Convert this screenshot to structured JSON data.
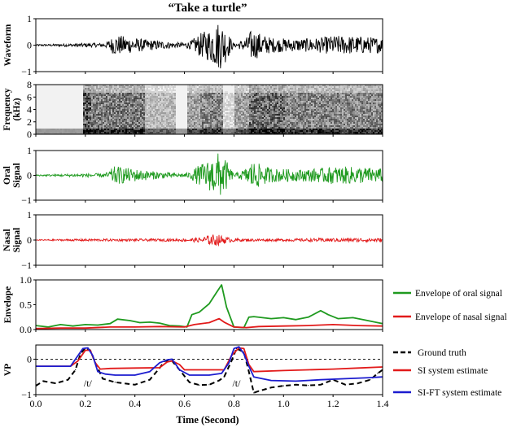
{
  "title": "“Take a turtle”",
  "xlabel": "Time (Second)",
  "colors": {
    "waveform": "#000000",
    "oral": "#1f9a1f",
    "nasal": "#e21a1a",
    "ground_truth": "#000000",
    "si_estimate": "#e21a1a",
    "si_ft_estimate": "#1c1ccf"
  },
  "annotations": [
    "/t/",
    "/t/"
  ],
  "chart_data": [
    {
      "type": "line",
      "panel": "waveform",
      "ylabel": "Waveform",
      "xlim": [
        0,
        1.4
      ],
      "ylim": [
        -1,
        1
      ],
      "yticks": [
        "1",
        "0",
        "−1"
      ],
      "envelope": {
        "x": [
          0.0,
          0.1,
          0.2,
          0.28,
          0.32,
          0.38,
          0.45,
          0.5,
          0.55,
          0.58,
          0.62,
          0.66,
          0.7,
          0.74,
          0.76,
          0.8,
          0.85,
          0.87,
          0.95,
          1.05,
          1.15,
          1.2,
          1.3,
          1.4
        ],
        "amp": [
          0.03,
          0.05,
          0.08,
          0.08,
          0.42,
          0.32,
          0.22,
          0.18,
          0.12,
          0.1,
          0.14,
          0.45,
          0.65,
          1.0,
          0.8,
          0.05,
          0.3,
          0.62,
          0.3,
          0.25,
          0.3,
          0.38,
          0.36,
          0.3
        ]
      }
    },
    {
      "type": "heatmap",
      "panel": "spectrogram",
      "ylabel": "Frequency (kHz)",
      "xlim": [
        0,
        1.4
      ],
      "ylim": [
        0,
        8
      ],
      "yticks": [
        "8",
        "6",
        "4",
        "2",
        "0"
      ]
    },
    {
      "type": "line",
      "panel": "oral",
      "ylabel": "Oral Signal",
      "xlim": [
        0,
        1.4
      ],
      "ylim": [
        -1,
        1
      ],
      "yticks": [
        "1",
        "0",
        "−1"
      ],
      "envelope": {
        "x": [
          0.0,
          0.1,
          0.2,
          0.28,
          0.32,
          0.38,
          0.45,
          0.5,
          0.55,
          0.58,
          0.62,
          0.66,
          0.7,
          0.74,
          0.76,
          0.8,
          0.85,
          0.87,
          0.95,
          1.05,
          1.15,
          1.2,
          1.3,
          1.4
        ],
        "amp": [
          0.03,
          0.05,
          0.08,
          0.08,
          0.4,
          0.3,
          0.2,
          0.15,
          0.1,
          0.08,
          0.12,
          0.45,
          0.65,
          1.0,
          0.8,
          0.05,
          0.3,
          0.62,
          0.3,
          0.25,
          0.3,
          0.38,
          0.36,
          0.3
        ]
      }
    },
    {
      "type": "line",
      "panel": "nasal",
      "ylabel": "Nasal Signal",
      "xlim": [
        0,
        1.4
      ],
      "ylim": [
        -1,
        1
      ],
      "yticks": [
        "1",
        "0",
        "−1"
      ],
      "envelope": {
        "x": [
          0.0,
          0.2,
          0.4,
          0.6,
          0.66,
          0.72,
          0.74,
          0.78,
          0.82,
          1.0,
          1.2,
          1.4
        ],
        "amp": [
          0.02,
          0.05,
          0.05,
          0.06,
          0.1,
          0.25,
          0.22,
          0.1,
          0.06,
          0.05,
          0.08,
          0.08
        ]
      }
    },
    {
      "type": "line",
      "panel": "envelope",
      "ylabel": "Envelope",
      "xlim": [
        0,
        1.4
      ],
      "ylim": [
        0,
        1.0
      ],
      "yticks": [
        "1.0",
        "0.5",
        "0.0"
      ],
      "series": [
        {
          "name": "Envelope of oral signal",
          "x": [
            0.0,
            0.05,
            0.1,
            0.15,
            0.2,
            0.25,
            0.3,
            0.33,
            0.38,
            0.42,
            0.46,
            0.5,
            0.54,
            0.58,
            0.61,
            0.63,
            0.66,
            0.7,
            0.73,
            0.75,
            0.77,
            0.8,
            0.84,
            0.86,
            0.88,
            0.95,
            1.0,
            1.05,
            1.1,
            1.15,
            1.18,
            1.22,
            1.28,
            1.33,
            1.38,
            1.4
          ],
          "values": [
            0.08,
            0.05,
            0.1,
            0.07,
            0.1,
            0.09,
            0.12,
            0.21,
            0.18,
            0.14,
            0.15,
            0.13,
            0.08,
            0.07,
            0.05,
            0.3,
            0.35,
            0.52,
            0.75,
            0.9,
            0.45,
            0.05,
            0.04,
            0.25,
            0.26,
            0.22,
            0.24,
            0.2,
            0.25,
            0.38,
            0.3,
            0.22,
            0.24,
            0.19,
            0.14,
            0.12
          ]
        },
        {
          "name": "Envelope of nasal signal",
          "x": [
            0.0,
            0.1,
            0.2,
            0.3,
            0.4,
            0.5,
            0.6,
            0.64,
            0.7,
            0.74,
            0.76,
            0.8,
            0.85,
            0.9,
            1.0,
            1.1,
            1.2,
            1.3,
            1.4
          ],
          "values": [
            0.02,
            0.03,
            0.03,
            0.05,
            0.05,
            0.06,
            0.05,
            0.1,
            0.14,
            0.22,
            0.15,
            0.05,
            0.04,
            0.06,
            0.07,
            0.08,
            0.1,
            0.08,
            0.07
          ]
        }
      ]
    },
    {
      "type": "line",
      "panel": "vp",
      "ylabel": "VP",
      "xlim": [
        0,
        1.4
      ],
      "ylim": [
        -1.0,
        0.4
      ],
      "yticks": [
        "0",
        "−1"
      ],
      "xticks": [
        "0.0",
        "0.2",
        "0.4",
        "0.6",
        "0.8",
        "1.0",
        "1.2",
        "1.4"
      ],
      "reference_line": 0,
      "series": [
        {
          "name": "Ground truth",
          "style": "dashed",
          "x": [
            0.0,
            0.03,
            0.08,
            0.13,
            0.16,
            0.18,
            0.2,
            0.22,
            0.24,
            0.27,
            0.32,
            0.4,
            0.46,
            0.5,
            0.52,
            0.55,
            0.58,
            0.62,
            0.66,
            0.7,
            0.74,
            0.76,
            0.79,
            0.81,
            0.84,
            0.86,
            0.88,
            0.9,
            0.95,
            1.0,
            1.05,
            1.1,
            1.15,
            1.2,
            1.25,
            1.3,
            1.35,
            1.38,
            1.4
          ],
          "values": [
            -0.75,
            -0.62,
            -0.68,
            -0.58,
            -0.3,
            0.15,
            0.32,
            0.25,
            -0.1,
            -0.55,
            -0.65,
            -0.72,
            -0.58,
            -0.25,
            -0.05,
            -0.05,
            -0.3,
            -0.65,
            -0.73,
            -0.72,
            -0.6,
            -0.5,
            -0.05,
            0.3,
            0.2,
            -0.35,
            -0.95,
            -0.9,
            -0.8,
            -0.75,
            -0.72,
            -0.74,
            -0.72,
            -0.58,
            -0.72,
            -0.68,
            -0.58,
            -0.4,
            -0.3
          ]
        },
        {
          "name": "SI system  estimate",
          "x": [
            0.0,
            0.05,
            0.1,
            0.14,
            0.17,
            0.2,
            0.22,
            0.24,
            0.26,
            0.3,
            0.4,
            0.5,
            0.53,
            0.55,
            0.58,
            0.6,
            0.7,
            0.76,
            0.79,
            0.82,
            0.84,
            0.86,
            0.88,
            1.0,
            1.1,
            1.2,
            1.3,
            1.4
          ],
          "values": [
            -0.2,
            -0.2,
            -0.2,
            -0.2,
            -0.05,
            0.25,
            0.25,
            -0.1,
            -0.28,
            -0.26,
            -0.25,
            -0.24,
            -0.08,
            -0.05,
            -0.15,
            -0.3,
            -0.3,
            -0.3,
            0.1,
            0.32,
            0.3,
            -0.15,
            -0.35,
            -0.32,
            -0.3,
            -0.28,
            -0.25,
            -0.22
          ]
        },
        {
          "name": "SI-FT system estimate",
          "x": [
            0.0,
            0.05,
            0.1,
            0.14,
            0.17,
            0.19,
            0.21,
            0.23,
            0.25,
            0.28,
            0.32,
            0.4,
            0.46,
            0.5,
            0.53,
            0.55,
            0.58,
            0.62,
            0.7,
            0.75,
            0.78,
            0.8,
            0.82,
            0.84,
            0.86,
            0.88,
            0.95,
            1.05,
            1.15,
            1.25,
            1.35,
            1.4
          ],
          "values": [
            -0.2,
            -0.2,
            -0.2,
            -0.2,
            0.1,
            0.3,
            0.32,
            0.1,
            -0.35,
            -0.42,
            -0.45,
            -0.45,
            -0.35,
            -0.1,
            -0.02,
            0.0,
            -0.3,
            -0.45,
            -0.45,
            -0.4,
            -0.1,
            0.3,
            0.35,
            0.15,
            -0.2,
            -0.5,
            -0.6,
            -0.62,
            -0.58,
            -0.55,
            -0.52,
            -0.5
          ]
        }
      ]
    }
  ]
}
